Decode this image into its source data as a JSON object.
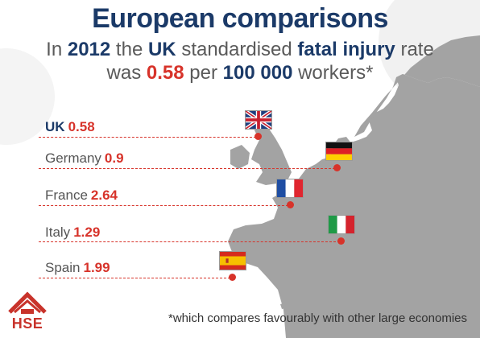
{
  "title": "European comparisons",
  "subtitle": {
    "line1_pre": "In",
    "line1_year": "2012",
    "line1_mid": "the",
    "line1_uk": "UK",
    "line1_post": "standardised",
    "line1_bold": "fatal injury",
    "line1_end": "rate",
    "line2_pre": "was",
    "line2_rate": "0.58",
    "line2_mid": "per",
    "line2_bold": "100 000",
    "line2_end": "workers*"
  },
  "chart_data": {
    "type": "table",
    "categories": [
      "UK",
      "Germany",
      "France",
      "Italy",
      "Spain"
    ],
    "values": [
      0.58,
      0.9,
      2.64,
      1.29,
      1.99
    ]
  },
  "rows": [
    {
      "name": "UK",
      "value": "0.58"
    },
    {
      "name": "Germany",
      "value": "0.9"
    },
    {
      "name": "France",
      "value": "2.64"
    },
    {
      "name": "Italy",
      "value": "1.29"
    },
    {
      "name": "Spain",
      "value": "1.99"
    }
  ],
  "footnote": "*which compares favourably with other large economies",
  "logo": {
    "text": "HSE",
    "color": "#c8332b"
  },
  "colors": {
    "navy": "#1b3a68",
    "accent_red": "#d7332a",
    "land": "#a3a3a3",
    "text_grey": "#555555"
  },
  "icons": [
    "flag-uk-icon",
    "flag-germany-icon",
    "flag-france-icon",
    "flag-italy-icon",
    "flag-spain-icon",
    "hse-logo-icon"
  ]
}
